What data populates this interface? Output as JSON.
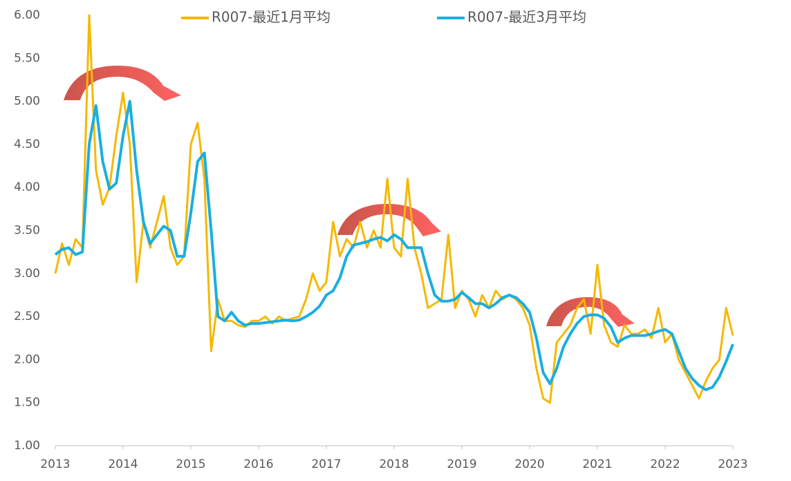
{
  "chart_data": {
    "type": "line",
    "x": [
      2013,
      2013.1,
      2013.2,
      2013.3,
      2013.4,
      2013.5,
      2013.6,
      2013.7,
      2013.8,
      2013.9,
      2014,
      2014.1,
      2014.2,
      2014.3,
      2014.4,
      2014.5,
      2014.6,
      2014.7,
      2014.8,
      2014.9,
      2015,
      2015.1,
      2015.2,
      2015.3,
      2015.4,
      2015.5,
      2015.6,
      2015.7,
      2015.8,
      2015.9,
      2016,
      2016.1,
      2016.2,
      2016.3,
      2016.4,
      2016.5,
      2016.6,
      2016.7,
      2016.8,
      2016.9,
      2017,
      2017.1,
      2017.2,
      2017.3,
      2017.4,
      2017.5,
      2017.6,
      2017.7,
      2017.8,
      2017.9,
      2018,
      2018.1,
      2018.2,
      2018.3,
      2018.4,
      2018.5,
      2018.6,
      2018.7,
      2018.8,
      2018.9,
      2019,
      2019.1,
      2019.2,
      2019.3,
      2019.4,
      2019.5,
      2019.6,
      2019.7,
      2019.8,
      2019.9,
      2020,
      2020.1,
      2020.2,
      2020.3,
      2020.4,
      2020.5,
      2020.6,
      2020.7,
      2020.8,
      2020.9,
      2021,
      2021.1,
      2021.2,
      2021.3,
      2021.4,
      2021.5,
      2021.6,
      2021.7,
      2021.8,
      2021.9,
      2022,
      2022.1,
      2022.2,
      2022.3,
      2022.4,
      2022.5,
      2022.6,
      2022.7,
      2022.8,
      2022.9,
      2023
    ],
    "series": [
      {
        "name": "R007-最近1月平均",
        "color": "#f5b800",
        "values": [
          3.0,
          3.35,
          3.1,
          3.4,
          3.3,
          6.0,
          4.2,
          3.8,
          4.0,
          4.6,
          5.1,
          4.5,
          2.9,
          3.6,
          3.3,
          3.6,
          3.9,
          3.3,
          3.1,
          3.2,
          4.5,
          4.75,
          4.1,
          2.1,
          2.7,
          2.45,
          2.45,
          2.4,
          2.38,
          2.45,
          2.45,
          2.5,
          2.42,
          2.5,
          2.45,
          2.48,
          2.5,
          2.7,
          3.0,
          2.8,
          2.9,
          3.6,
          3.2,
          3.4,
          3.3,
          3.6,
          3.3,
          3.5,
          3.3,
          4.1,
          3.3,
          3.2,
          4.1,
          3.3,
          3.0,
          2.6,
          2.65,
          2.7,
          3.45,
          2.6,
          2.8,
          2.7,
          2.5,
          2.75,
          2.6,
          2.8,
          2.7,
          2.75,
          2.7,
          2.6,
          2.4,
          1.9,
          1.55,
          1.5,
          2.2,
          2.3,
          2.4,
          2.6,
          2.7,
          2.3,
          3.1,
          2.4,
          2.2,
          2.15,
          2.4,
          2.3,
          2.3,
          2.35,
          2.25,
          2.6,
          2.2,
          2.3,
          2.0,
          1.85,
          1.7,
          1.55,
          1.75,
          1.9,
          2.0,
          2.6,
          2.28
        ]
      },
      {
        "name": "R007-最近3月平均",
        "color": "#1aaee0",
        "values": [
          3.22,
          3.28,
          3.3,
          3.22,
          3.25,
          4.5,
          4.95,
          4.3,
          3.98,
          4.05,
          4.6,
          5.0,
          4.2,
          3.6,
          3.35,
          3.45,
          3.55,
          3.5,
          3.2,
          3.2,
          3.7,
          4.3,
          4.4,
          3.5,
          2.5,
          2.45,
          2.55,
          2.45,
          2.4,
          2.42,
          2.42,
          2.43,
          2.44,
          2.45,
          2.46,
          2.45,
          2.46,
          2.5,
          2.55,
          2.62,
          2.75,
          2.8,
          2.95,
          3.2,
          3.33,
          3.35,
          3.37,
          3.4,
          3.42,
          3.38,
          3.45,
          3.4,
          3.3,
          3.3,
          3.3,
          3.0,
          2.75,
          2.68,
          2.68,
          2.7,
          2.78,
          2.72,
          2.65,
          2.65,
          2.6,
          2.65,
          2.72,
          2.75,
          2.72,
          2.65,
          2.55,
          2.25,
          1.85,
          1.72,
          1.9,
          2.15,
          2.3,
          2.42,
          2.5,
          2.52,
          2.52,
          2.48,
          2.38,
          2.2,
          2.25,
          2.28,
          2.28,
          2.28,
          2.3,
          2.33,
          2.35,
          2.3,
          2.1,
          1.9,
          1.78,
          1.7,
          1.65,
          1.68,
          1.8,
          1.98,
          2.18
        ]
      }
    ],
    "xlim": [
      2013,
      2023
    ],
    "xticks": [
      2013,
      2014,
      2015,
      2016,
      2017,
      2018,
      2019,
      2020,
      2021,
      2022,
      2023
    ],
    "ylim": [
      1,
      6
    ],
    "yticks": [
      {
        "value": 1,
        "label": "1.00"
      },
      {
        "value": 1.5,
        "label": "1.50"
      },
      {
        "value": 2,
        "label": "2.00"
      },
      {
        "value": 2.5,
        "label": "2.50"
      },
      {
        "value": 3,
        "label": "3.00"
      },
      {
        "value": 3.5,
        "label": "3.50"
      },
      {
        "value": 4,
        "label": "4.00"
      },
      {
        "value": 4.5,
        "label": "4.50"
      },
      {
        "value": 5,
        "label": "5.00"
      },
      {
        "value": 5.5,
        "label": "5.50"
      },
      {
        "value": 6,
        "label": "6.00"
      }
    ],
    "grid": false,
    "legend": "top"
  }
}
